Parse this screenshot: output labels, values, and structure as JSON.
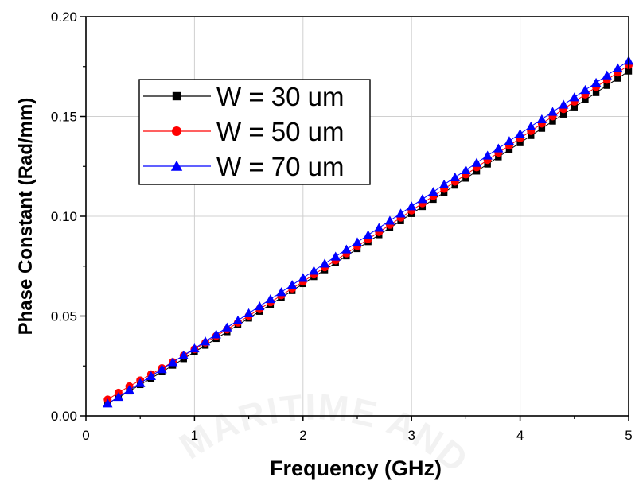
{
  "chart_data": {
    "type": "scatter",
    "title": "",
    "xlabel": "Frequency (GHz)",
    "ylabel": "Phase Constant (Rad/mm)",
    "xlim": [
      0,
      5
    ],
    "ylim": [
      0,
      0.2
    ],
    "xticks": [
      "0",
      "1",
      "2",
      "3",
      "4",
      "5"
    ],
    "yticks": [
      "0.00",
      "0.05",
      "0.10",
      "0.15",
      "0.20"
    ],
    "grid": true,
    "legend_position": "top-left",
    "series": [
      {
        "name": "W = 30 um",
        "color": "#000000",
        "marker": "square",
        "x": [
          0.2,
          0.3,
          0.4,
          0.5,
          0.6,
          0.7,
          0.8,
          0.9,
          1.0,
          1.1,
          1.2,
          1.3,
          1.4,
          1.5,
          1.6,
          1.7,
          1.8,
          1.9,
          2.0,
          2.1,
          2.2,
          2.3,
          2.4,
          2.5,
          2.6,
          2.7,
          2.8,
          2.9,
          3.0,
          3.1,
          3.2,
          3.3,
          3.4,
          3.5,
          3.6,
          3.7,
          3.8,
          3.9,
          4.0,
          4.1,
          4.2,
          4.3,
          4.4,
          4.5,
          4.6,
          4.7,
          4.8,
          4.9,
          5.0
        ],
        "y": [
          0.0062,
          0.0093,
          0.0124,
          0.0156,
          0.0188,
          0.022,
          0.0253,
          0.0286,
          0.032,
          0.0353,
          0.0387,
          0.0421,
          0.0455,
          0.0489,
          0.0523,
          0.0558,
          0.0592,
          0.0627,
          0.0662,
          0.0697,
          0.0731,
          0.0766,
          0.0801,
          0.0837,
          0.0872,
          0.0907,
          0.0942,
          0.0977,
          0.1013,
          0.1048,
          0.1084,
          0.1119,
          0.1155,
          0.119,
          0.1226,
          0.1261,
          0.1297,
          0.1333,
          0.1368,
          0.1404,
          0.144,
          0.1476,
          0.1511,
          0.1547,
          0.1583,
          0.1619,
          0.1655,
          0.1691,
          0.1727
        ]
      },
      {
        "name": "W = 50 um",
        "color": "#ff0000",
        "marker": "circle",
        "x": [
          0.2,
          0.3,
          0.4,
          0.5,
          0.6,
          0.7,
          0.8,
          0.9,
          1.0,
          1.1,
          1.2,
          1.3,
          1.4,
          1.5,
          1.6,
          1.7,
          1.8,
          1.9,
          2.0,
          2.1,
          2.2,
          2.3,
          2.4,
          2.5,
          2.6,
          2.7,
          2.8,
          2.9,
          3.0,
          3.1,
          3.2,
          3.3,
          3.4,
          3.5,
          3.6,
          3.7,
          3.8,
          3.9,
          4.0,
          4.1,
          4.2,
          4.3,
          4.4,
          4.5,
          4.6,
          4.7,
          4.8,
          4.9,
          5.0
        ],
        "y": [
          0.0082,
          0.0116,
          0.0148,
          0.0178,
          0.0208,
          0.0239,
          0.027,
          0.0302,
          0.0334,
          0.0367,
          0.04,
          0.0433,
          0.0467,
          0.0501,
          0.0535,
          0.0569,
          0.0604,
          0.0638,
          0.0673,
          0.0708,
          0.0744,
          0.0779,
          0.0814,
          0.085,
          0.0885,
          0.0921,
          0.0957,
          0.0993,
          0.1029,
          0.1065,
          0.1101,
          0.1137,
          0.1173,
          0.1209,
          0.1245,
          0.1282,
          0.1318,
          0.1354,
          0.1391,
          0.1427,
          0.1464,
          0.15,
          0.1537,
          0.1574,
          0.161,
          0.1647,
          0.1684,
          0.172,
          0.1757
        ]
      },
      {
        "name": "W = 70 um",
        "color": "#0000ff",
        "marker": "triangle",
        "x": [
          0.2,
          0.3,
          0.4,
          0.5,
          0.6,
          0.7,
          0.8,
          0.9,
          1.0,
          1.1,
          1.2,
          1.3,
          1.4,
          1.5,
          1.6,
          1.7,
          1.8,
          1.9,
          2.0,
          2.1,
          2.2,
          2.3,
          2.4,
          2.5,
          2.6,
          2.7,
          2.8,
          2.9,
          3.0,
          3.1,
          3.2,
          3.3,
          3.4,
          3.5,
          3.6,
          3.7,
          3.8,
          3.9,
          4.0,
          4.1,
          4.2,
          4.3,
          4.4,
          4.5,
          4.6,
          4.7,
          4.8,
          4.9,
          5.0
        ],
        "y": [
          0.0062,
          0.0095,
          0.013,
          0.0164,
          0.0199,
          0.0234,
          0.0269,
          0.0303,
          0.0338,
          0.0373,
          0.0408,
          0.0443,
          0.0478,
          0.0514,
          0.0549,
          0.0585,
          0.062,
          0.0656,
          0.0691,
          0.0727,
          0.0763,
          0.0798,
          0.0834,
          0.087,
          0.0906,
          0.0942,
          0.0978,
          0.1014,
          0.105,
          0.1086,
          0.1122,
          0.1159,
          0.1195,
          0.1231,
          0.1268,
          0.1304,
          0.134,
          0.1377,
          0.1413,
          0.145,
          0.1486,
          0.1523,
          0.1559,
          0.1596,
          0.1633,
          0.1669,
          0.1706,
          0.1742,
          0.1779
        ]
      }
    ]
  }
}
